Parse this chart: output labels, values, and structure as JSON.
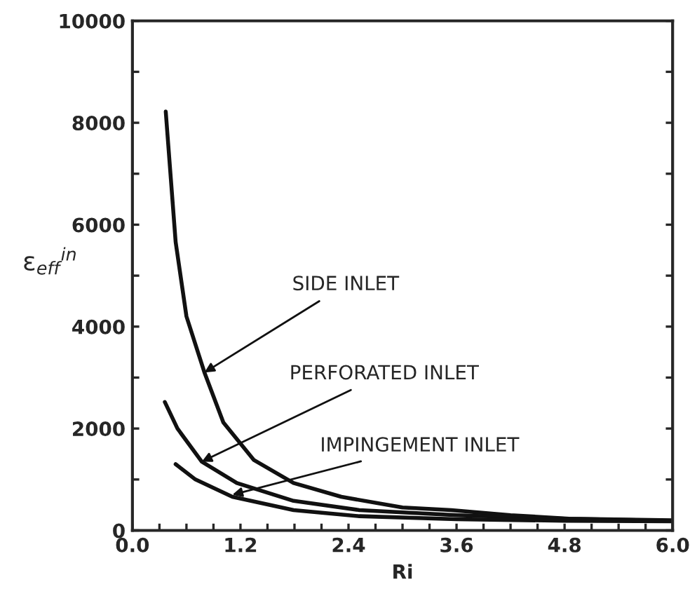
{
  "chart_data": {
    "type": "line",
    "xlabel": "Ri",
    "ylabel": "ε$_{eff}$$^{in}$",
    "series": [
      {
        "color": "#111111",
        "x": [
          0.37,
          0.48,
          0.6,
          0.8,
          1.01,
          1.35,
          1.79,
          2.32,
          3.0,
          3.54,
          4.2,
          4.85,
          6.0
        ],
        "values": [
          8220,
          5660,
          4200,
          3100,
          2120,
          1380,
          930,
          660,
          450,
          400,
          300,
          230,
          200
        ]
      },
      {
        "color": "#111111",
        "x": [
          0.36,
          0.5,
          0.77,
          1.16,
          1.79,
          2.52,
          3.6,
          4.8,
          6.0
        ],
        "values": [
          2520,
          2000,
          1350,
          930,
          580,
          400,
          300,
          230,
          190
        ]
      },
      {
        "color": "#111111",
        "x": [
          0.48,
          0.7,
          1.11,
          1.79,
          2.52,
          3.6,
          4.8,
          6.0
        ],
        "values": [
          1300,
          1000,
          660,
          400,
          280,
          220,
          190,
          180
        ]
      }
    ],
    "annotations": [
      {
        "text": "SIDE INLET",
        "x": 0.8,
        "y": 3100
      },
      {
        "text": "PERFORATED INLET",
        "x": 0.77,
        "y": 1350
      },
      {
        "text": "IMPINGEMENT INLET",
        "x": 1.11,
        "y": 700
      }
    ],
    "xlim": [
      0,
      6
    ],
    "ylim": [
      0,
      10000
    ],
    "xticks": [
      {
        "value": 0,
        "label": "0.0"
      },
      {
        "value": 0.3,
        "label": null
      },
      {
        "value": 0.6,
        "label": null
      },
      {
        "value": 0.9,
        "label": null
      },
      {
        "value": 1.2,
        "label": "1.2"
      },
      {
        "value": 1.5,
        "label": null
      },
      {
        "value": 1.8,
        "label": null
      },
      {
        "value": 2.1,
        "label": null
      },
      {
        "value": 2.4,
        "label": "2.4"
      },
      {
        "value": 2.7,
        "label": null
      },
      {
        "value": 3.0,
        "label": null
      },
      {
        "value": 3.3,
        "label": null
      },
      {
        "value": 3.6,
        "label": "3.6"
      },
      {
        "value": 3.9,
        "label": null
      },
      {
        "value": 4.2,
        "label": null
      },
      {
        "value": 4.5,
        "label": null
      },
      {
        "value": 4.8,
        "label": "4.8"
      },
      {
        "value": 5.1,
        "label": null
      },
      {
        "value": 5.4,
        "label": null
      },
      {
        "value": 5.7,
        "label": null
      },
      {
        "value": 6.0,
        "label": "6.0"
      }
    ],
    "yticks": [
      0,
      {
        "value": 1000,
        "label": null
      },
      2000,
      {
        "value": 3000,
        "label": null
      },
      4000,
      {
        "value": 5000,
        "label": null
      },
      6000,
      {
        "value": 7000,
        "label": null
      },
      8000,
      {
        "value": 9000,
        "label": null
      },
      10000
    ],
    "grid": false,
    "legend": false,
    "marker": "none",
    "line_style": "solid"
  }
}
